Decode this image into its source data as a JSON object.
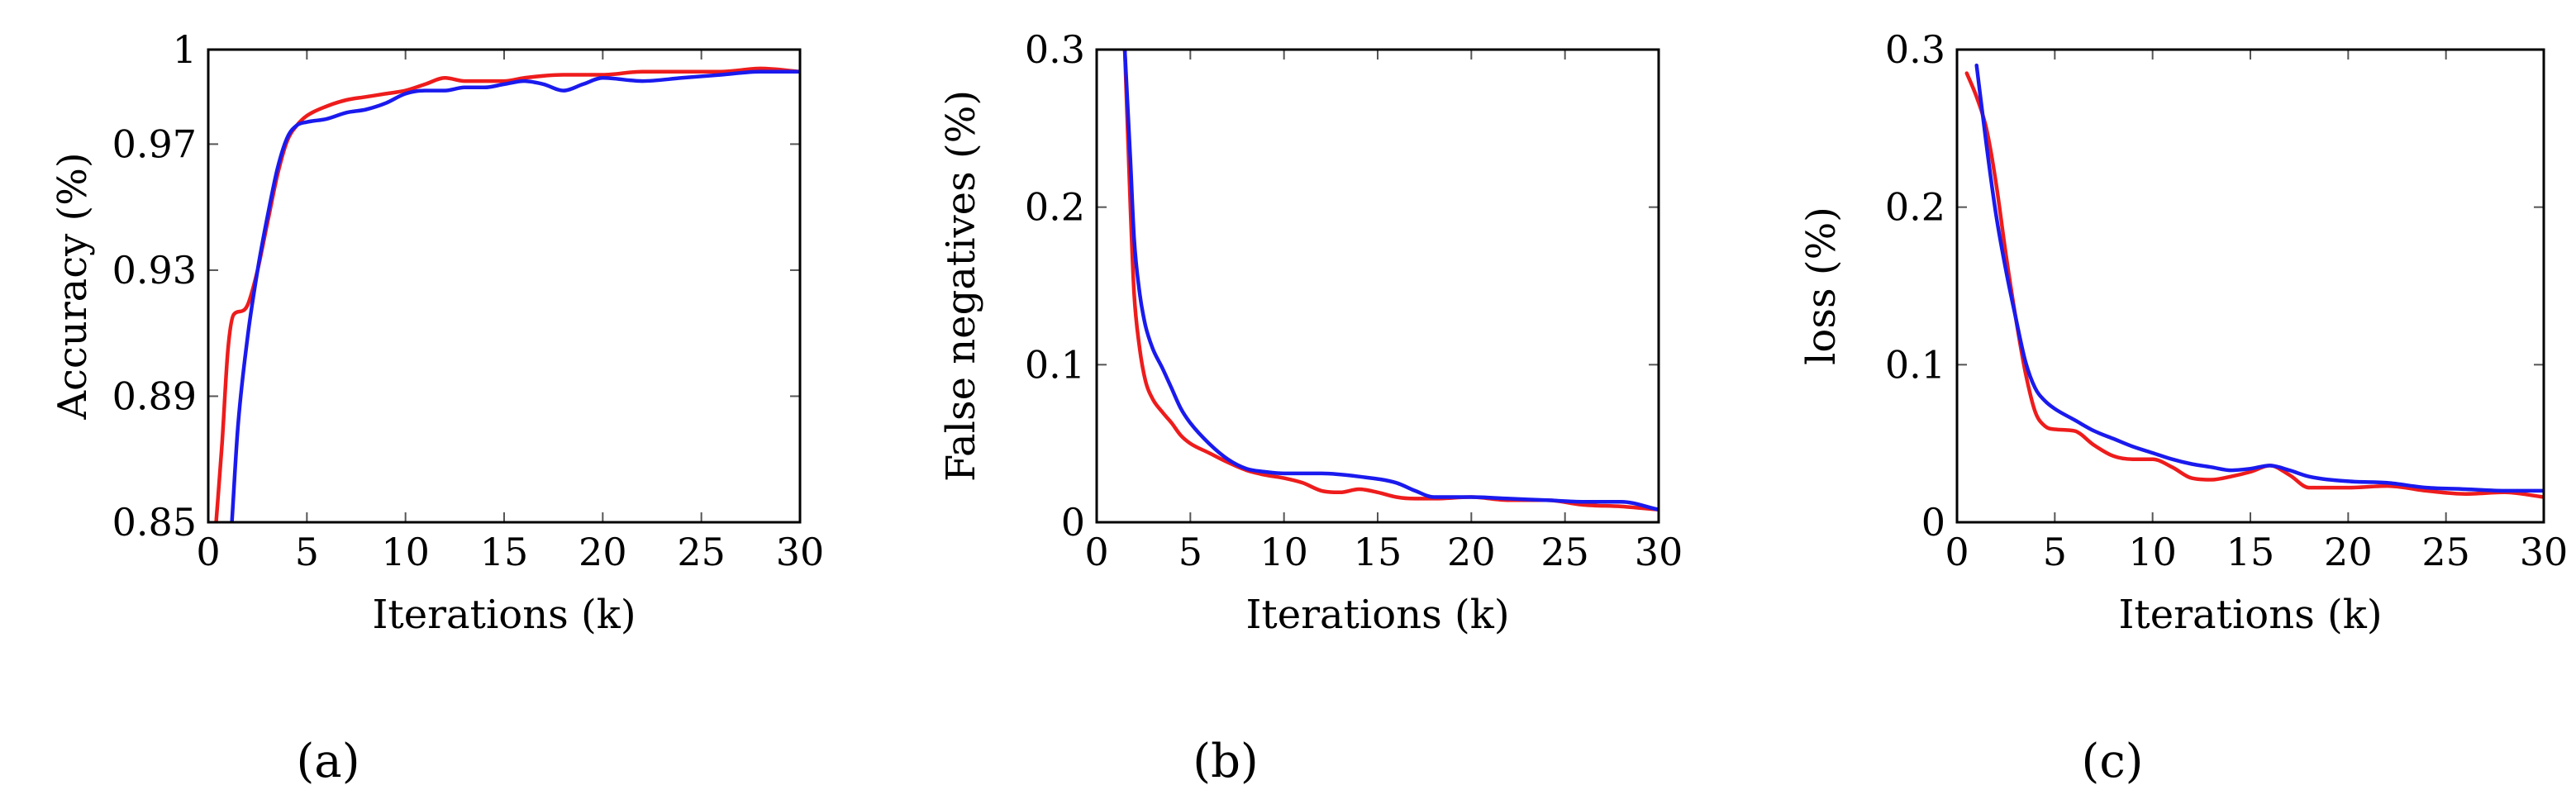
{
  "figure": {
    "panels": [
      {
        "label": "a",
        "caption": "(a)"
      },
      {
        "label": "b",
        "caption": "(b)"
      },
      {
        "label": "c",
        "caption": "(c)"
      }
    ]
  },
  "colors": {
    "red_series": "#ee1c1c",
    "blue_series": "#1a1aee",
    "axis": "#000000",
    "tick": "#555555"
  },
  "chart_data": [
    {
      "type": "line",
      "panel": "a",
      "xlabel": "Iterations (k)",
      "ylabel": "Accuracy (%)",
      "xlim": [
        0,
        30
      ],
      "ylim": [
        0.85,
        1.0
      ],
      "xticks": [
        0,
        5,
        10,
        15,
        20,
        25,
        30
      ],
      "xtick_labels": [
        "0",
        "5",
        "10",
        "15",
        "20",
        "25",
        "30"
      ],
      "yticks": [
        0.85,
        0.89,
        0.93,
        0.97,
        1.0
      ],
      "ytick_labels": [
        "0.85",
        "0.89",
        "0.93",
        "0.97",
        "1"
      ],
      "series": [
        {
          "name": "red",
          "color": "#ee1c1c",
          "x": [
            0.4,
            0.7,
            1.0,
            1.3,
            1.7,
            2.0,
            2.5,
            3.0,
            3.5,
            4.0,
            4.5,
            5.0,
            6.0,
            7.0,
            8.0,
            9.0,
            10.0,
            11.0,
            12.0,
            13.0,
            14.0,
            15.0,
            16.0,
            18.0,
            20.0,
            22.0,
            24.0,
            26.0,
            28.0,
            30.0
          ],
          "y": [
            0.85,
            0.875,
            0.905,
            0.916,
            0.917,
            0.919,
            0.93,
            0.945,
            0.96,
            0.971,
            0.976,
            0.979,
            0.982,
            0.984,
            0.985,
            0.986,
            0.987,
            0.989,
            0.991,
            0.99,
            0.99,
            0.99,
            0.991,
            0.992,
            0.992,
            0.993,
            0.993,
            0.993,
            0.994,
            0.993
          ]
        },
        {
          "name": "blue",
          "color": "#1a1aee",
          "x": [
            1.2,
            1.5,
            2.0,
            2.5,
            3.0,
            3.5,
            4.0,
            4.5,
            5.0,
            6.0,
            7.0,
            8.0,
            9.0,
            10.0,
            11.0,
            12.0,
            13.0,
            14.0,
            15.0,
            16.0,
            17.0,
            18.0,
            19.0,
            20.0,
            22.0,
            24.0,
            26.0,
            28.0,
            30.0
          ],
          "y": [
            0.85,
            0.88,
            0.909,
            0.93,
            0.947,
            0.962,
            0.972,
            0.976,
            0.977,
            0.978,
            0.98,
            0.981,
            0.983,
            0.986,
            0.987,
            0.987,
            0.988,
            0.988,
            0.989,
            0.99,
            0.989,
            0.987,
            0.989,
            0.991,
            0.99,
            0.991,
            0.992,
            0.993,
            0.993
          ]
        }
      ]
    },
    {
      "type": "line",
      "panel": "b",
      "xlabel": "Iterations (k)",
      "ylabel": "False negatives (%)",
      "xlim": [
        0,
        30
      ],
      "ylim": [
        0,
        0.3
      ],
      "xticks": [
        0,
        5,
        10,
        15,
        20,
        25,
        30
      ],
      "xtick_labels": [
        "0",
        "5",
        "10",
        "15",
        "20",
        "25",
        "30"
      ],
      "yticks": [
        0,
        0.1,
        0.2,
        0.3
      ],
      "ytick_labels": [
        "0",
        "0.1",
        "0.2",
        "0.3"
      ],
      "series": [
        {
          "name": "red",
          "color": "#ee1c1c",
          "x": [
            1.5,
            1.8,
            2.0,
            2.3,
            2.6,
            3.0,
            3.5,
            4.0,
            4.5,
            5.0,
            6.0,
            7.0,
            8.0,
            9.0,
            10.0,
            11.0,
            12.0,
            13.0,
            14.0,
            15.0,
            16.0,
            17.0,
            18.0,
            20.0,
            22.0,
            24.0,
            26.0,
            28.0,
            30.0
          ],
          "y": [
            0.3,
            0.2,
            0.145,
            0.11,
            0.09,
            0.078,
            0.07,
            0.063,
            0.055,
            0.05,
            0.044,
            0.038,
            0.033,
            0.03,
            0.028,
            0.025,
            0.02,
            0.019,
            0.021,
            0.019,
            0.016,
            0.015,
            0.015,
            0.016,
            0.014,
            0.014,
            0.011,
            0.01,
            0.008
          ]
        },
        {
          "name": "blue",
          "color": "#1a1aee",
          "x": [
            1.5,
            1.8,
            2.0,
            2.3,
            2.6,
            3.0,
            3.5,
            4.0,
            4.5,
            5.0,
            6.0,
            7.0,
            8.0,
            9.0,
            10.0,
            12.0,
            14.0,
            16.0,
            17.0,
            18.0,
            20.0,
            22.0,
            24.0,
            26.0,
            28.0,
            30.0
          ],
          "y": [
            0.3,
            0.23,
            0.18,
            0.145,
            0.125,
            0.11,
            0.098,
            0.085,
            0.072,
            0.063,
            0.05,
            0.04,
            0.034,
            0.032,
            0.031,
            0.031,
            0.029,
            0.025,
            0.02,
            0.016,
            0.016,
            0.015,
            0.014,
            0.013,
            0.013,
            0.008
          ]
        }
      ]
    },
    {
      "type": "line",
      "panel": "c",
      "xlabel": "Iterations (k)",
      "ylabel": "loss (%)",
      "xlim": [
        0,
        30
      ],
      "ylim": [
        0,
        0.3
      ],
      "xticks": [
        0,
        5,
        10,
        15,
        20,
        25,
        30
      ],
      "xtick_labels": [
        "0",
        "5",
        "10",
        "15",
        "20",
        "25",
        "30"
      ],
      "yticks": [
        0,
        0.1,
        0.2,
        0.3
      ],
      "ytick_labels": [
        "0",
        "0.1",
        "0.2",
        "0.3"
      ],
      "series": [
        {
          "name": "red",
          "color": "#ee1c1c",
          "x": [
            0.5,
            1.0,
            1.5,
            2.0,
            2.5,
            3.0,
            3.5,
            4.0,
            4.5,
            5.0,
            6.0,
            7.0,
            8.0,
            9.0,
            10.0,
            11.0,
            12.0,
            13.0,
            14.0,
            15.0,
            16.0,
            17.0,
            18.0,
            20.0,
            22.0,
            24.0,
            26.0,
            28.0,
            30.0
          ],
          "y": [
            0.285,
            0.27,
            0.25,
            0.215,
            0.17,
            0.13,
            0.095,
            0.07,
            0.061,
            0.059,
            0.058,
            0.049,
            0.042,
            0.04,
            0.04,
            0.035,
            0.028,
            0.027,
            0.029,
            0.032,
            0.036,
            0.03,
            0.022,
            0.022,
            0.023,
            0.02,
            0.018,
            0.019,
            0.016
          ]
        },
        {
          "name": "blue",
          "color": "#1a1aee",
          "x": [
            1.0,
            1.5,
            2.0,
            2.5,
            3.0,
            3.5,
            4.0,
            4.5,
            5.0,
            6.0,
            7.0,
            8.0,
            9.0,
            10.0,
            11.0,
            12.0,
            13.0,
            14.0,
            15.0,
            16.0,
            17.0,
            18.0,
            20.0,
            22.0,
            24.0,
            26.0,
            28.0,
            30.0
          ],
          "y": [
            0.29,
            0.24,
            0.195,
            0.16,
            0.13,
            0.102,
            0.085,
            0.077,
            0.072,
            0.065,
            0.058,
            0.053,
            0.048,
            0.044,
            0.04,
            0.037,
            0.035,
            0.033,
            0.034,
            0.036,
            0.033,
            0.029,
            0.026,
            0.025,
            0.022,
            0.021,
            0.02,
            0.02
          ]
        }
      ]
    }
  ]
}
